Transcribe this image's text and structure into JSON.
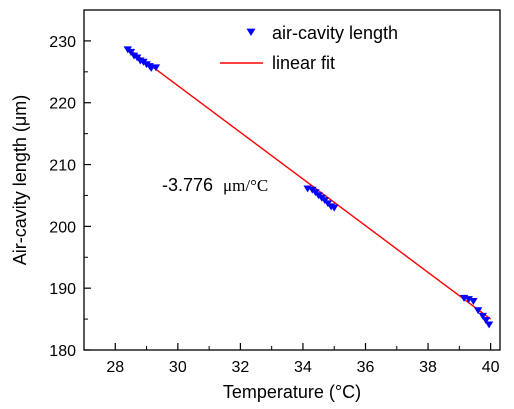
{
  "chart_data": {
    "type": "scatter",
    "xlabel": "Temperature (°C)",
    "ylabel": "Air-cavity length (μm)",
    "xlim": [
      27,
      40.3
    ],
    "ylim": [
      180,
      235
    ],
    "xticks": [
      28,
      30,
      32,
      34,
      36,
      38,
      40
    ],
    "yticks": [
      180,
      190,
      200,
      210,
      220,
      230
    ],
    "legend_position": "top-center",
    "annotation": {
      "number": "-3.776",
      "unit": "μm/°C"
    },
    "series": [
      {
        "name": "air-cavity length",
        "kind": "scatter",
        "marker": "triangle-down",
        "color": "#0000ff",
        "x": [
          28.4,
          28.5,
          28.6,
          28.7,
          28.8,
          28.9,
          29.0,
          29.1,
          29.15,
          29.3,
          34.15,
          34.3,
          34.4,
          34.5,
          34.6,
          34.7,
          34.8,
          34.9,
          35.0,
          39.15,
          39.3,
          39.45,
          39.6,
          39.75,
          39.85,
          39.95
        ],
        "y": [
          228.6,
          228.2,
          227.6,
          227.3,
          226.8,
          226.6,
          226.2,
          225.9,
          225.6,
          225.7,
          206.1,
          205.9,
          205.5,
          205.0,
          204.6,
          204.2,
          203.7,
          203.2,
          203.0,
          188.4,
          188.2,
          187.9,
          186.4,
          185.5,
          184.8,
          184.1
        ]
      },
      {
        "name": "linear fit",
        "kind": "line",
        "color": "#ff0000",
        "x": [
          28.4,
          40.0
        ],
        "y": [
          228.8,
          185.0
        ]
      }
    ]
  }
}
